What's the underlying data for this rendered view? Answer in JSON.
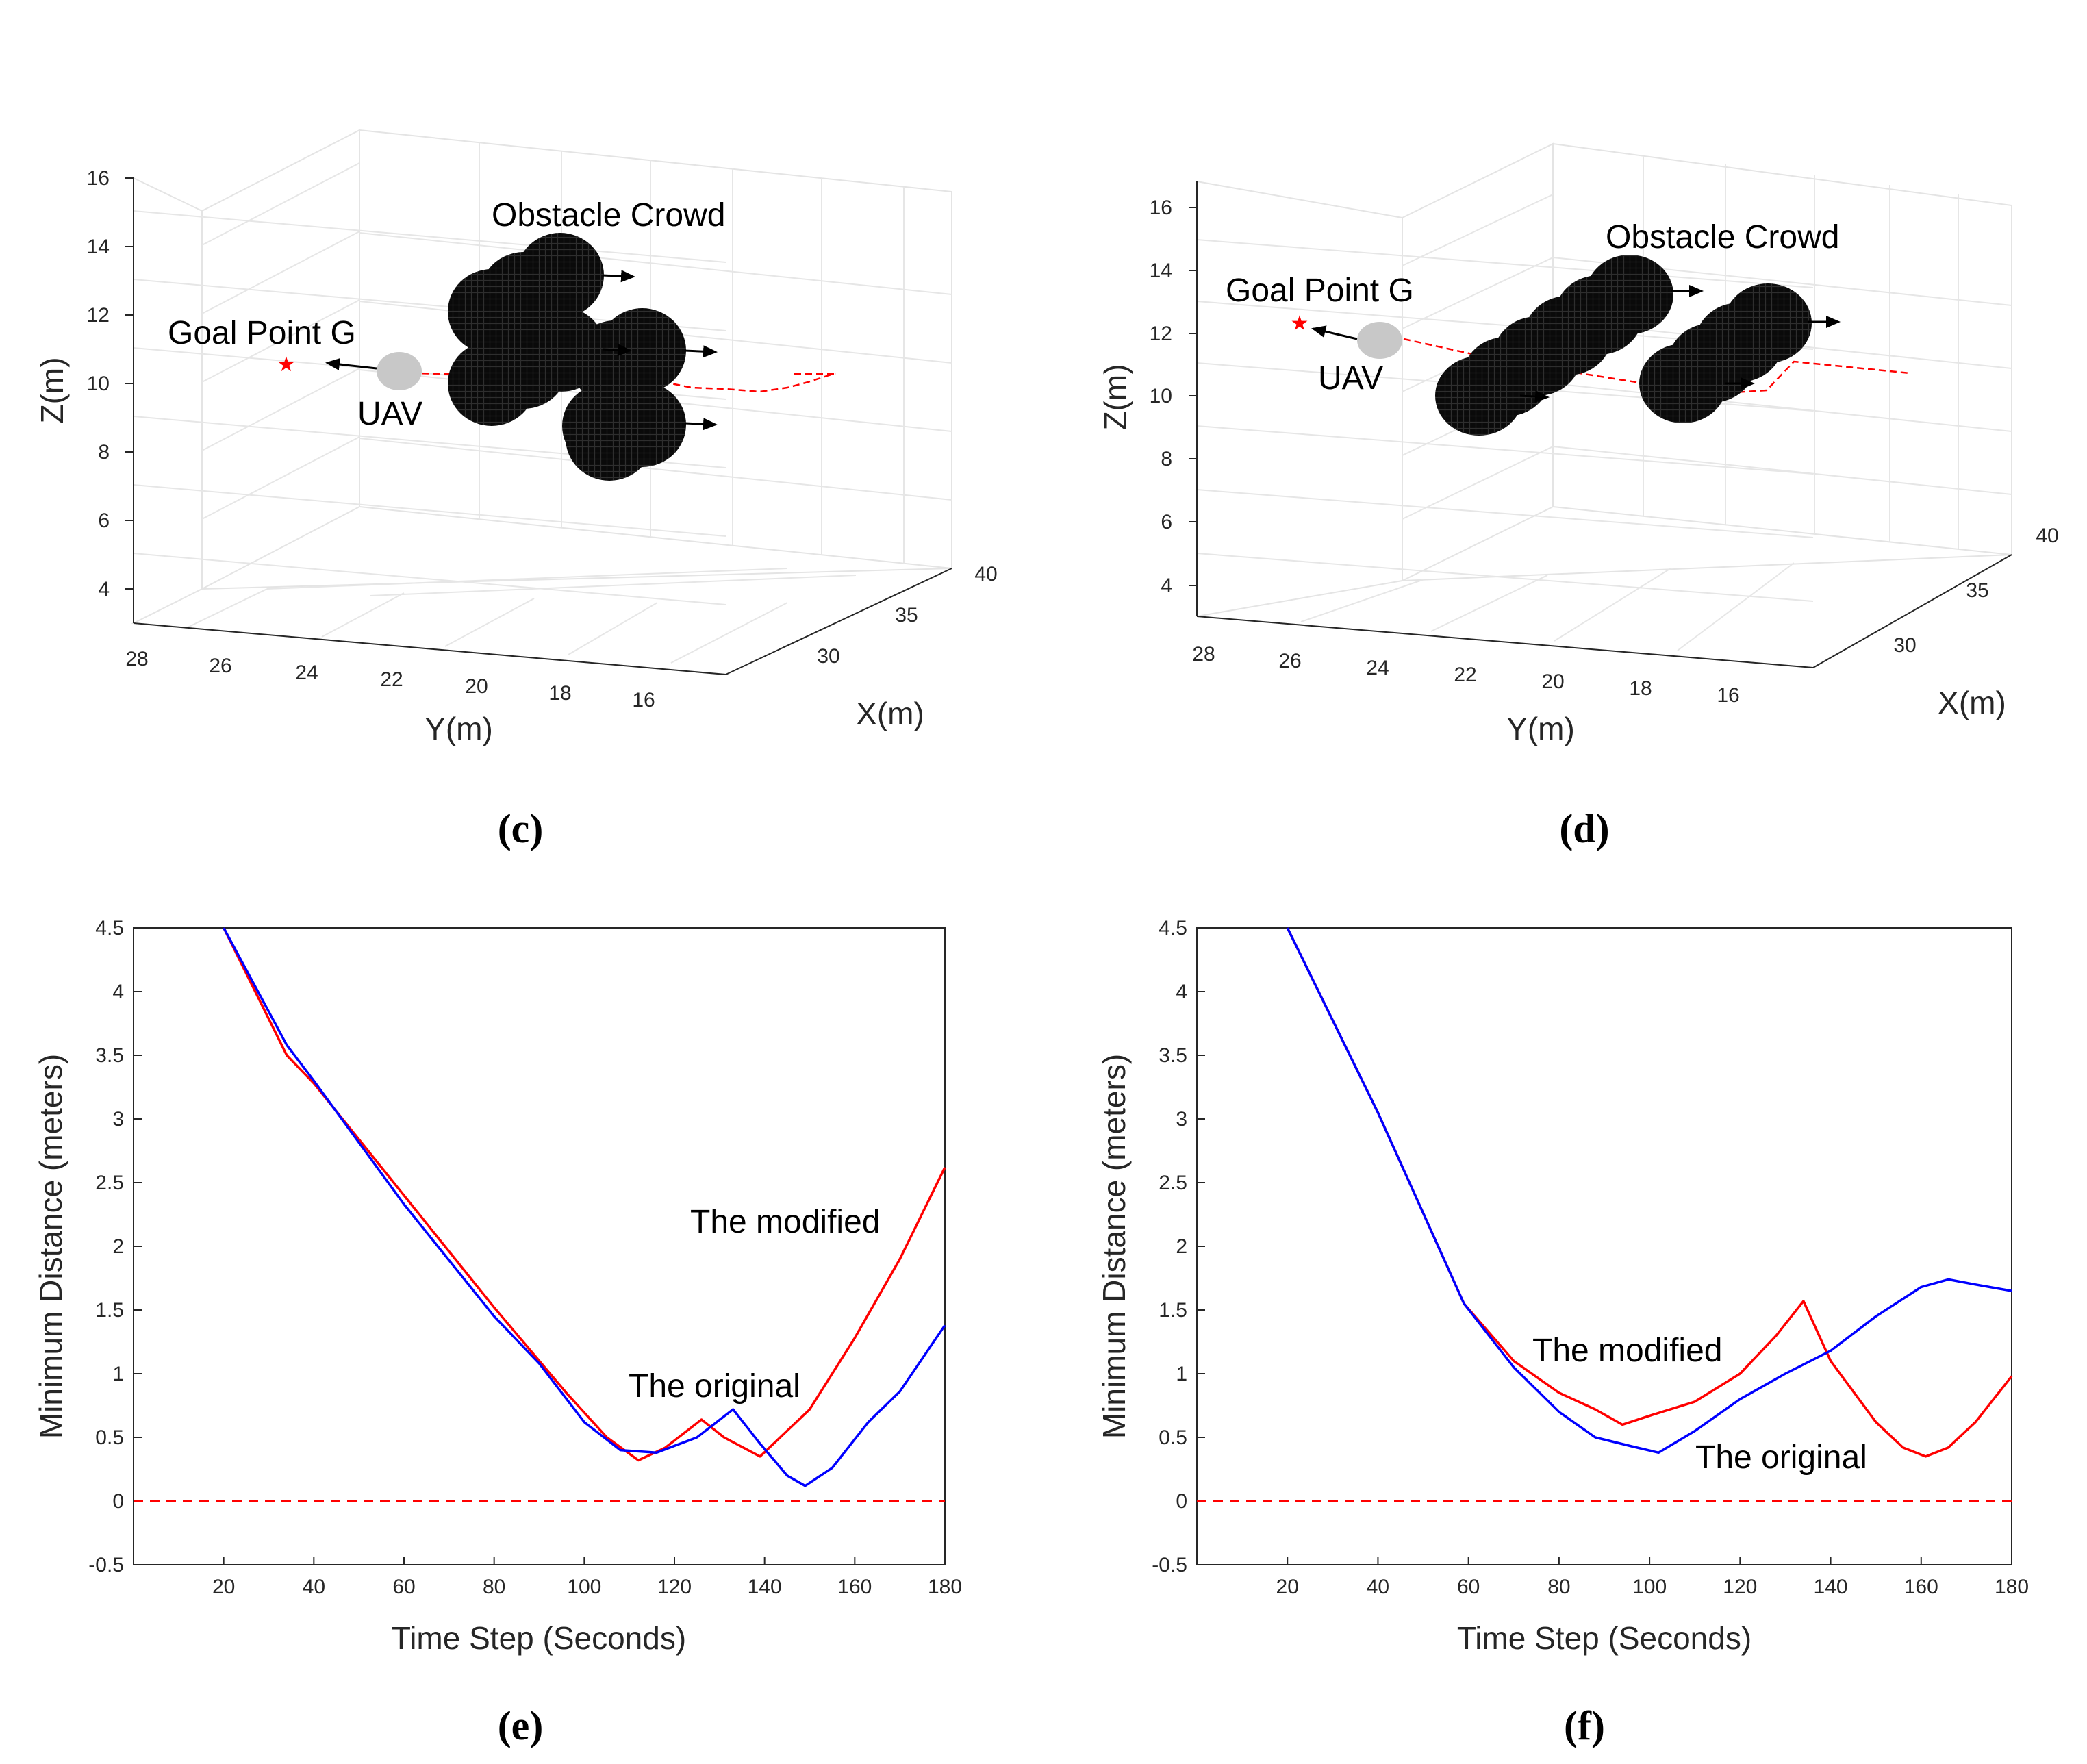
{
  "colors": {
    "modified": "#ff0000",
    "original": "#0000ff",
    "zero": "#ff0000",
    "obstacle": "#111111",
    "uav": "#c8c8c8"
  },
  "panels": {
    "c": {
      "label": "(c)",
      "annot_goal": "Goal Point G",
      "annot_uav": "UAV",
      "annot_crowd": "Obstacle Crowd"
    },
    "d": {
      "label": "(d)",
      "annot_goal": "Goal Point G",
      "annot_uav": "UAV",
      "annot_crowd": "Obstacle Crowd"
    },
    "e": {
      "label": "(e)",
      "annot_modified": "The modified",
      "annot_original": "The original"
    },
    "f": {
      "label": "(f)",
      "annot_modified": "The modified",
      "annot_original": "The original"
    }
  },
  "chart_data": [
    {
      "id": "c",
      "type": "scatter3d",
      "xlabel": "X(m)",
      "ylabel": "Y(m)",
      "zlabel": "Z(m)",
      "x_ticks": [
        "30",
        "35",
        "40"
      ],
      "y_ticks": [
        "28",
        "26",
        "24",
        "22",
        "20",
        "18",
        "16"
      ],
      "z_ticks": [
        "4",
        "6",
        "8",
        "10",
        "12",
        "14",
        "16"
      ]
    },
    {
      "id": "d",
      "type": "scatter3d",
      "xlabel": "X(m)",
      "ylabel": "Y(m)",
      "zlabel": "Z(m)",
      "x_ticks": [
        "30",
        "35",
        "40"
      ],
      "y_ticks": [
        "28",
        "26",
        "24",
        "22",
        "20",
        "18",
        "16"
      ],
      "z_ticks": [
        "4",
        "6",
        "8",
        "10",
        "12",
        "14",
        "16"
      ]
    },
    {
      "id": "e",
      "type": "line",
      "xlabel": "Time Step (Seconds)",
      "ylabel": "Minimum Distance (meters)",
      "xlim": [
        0,
        180
      ],
      "ylim": [
        -0.5,
        4.5
      ],
      "x_ticks": [
        "20",
        "40",
        "60",
        "80",
        "100",
        "120",
        "140",
        "160",
        "180"
      ],
      "y_ticks": [
        "-0.5",
        "0",
        "0.5",
        "1",
        "1.5",
        "2",
        "2.5",
        "3",
        "3.5",
        "4",
        "4.5"
      ],
      "zero_line": 0,
      "series": [
        {
          "name": "The modified",
          "points": [
            [
              20,
              4.5
            ],
            [
              34,
              3.5
            ],
            [
              40,
              3.28
            ],
            [
              60,
              2.4
            ],
            [
              80,
              1.52
            ],
            [
              96,
              0.85
            ],
            [
              105,
              0.5
            ],
            [
              112,
              0.32
            ],
            [
              118,
              0.42
            ],
            [
              126,
              0.64
            ],
            [
              131,
              0.5
            ],
            [
              139,
              0.35
            ],
            [
              150,
              0.72
            ],
            [
              160,
              1.28
            ],
            [
              170,
              1.9
            ],
            [
              180,
              2.62
            ]
          ]
        },
        {
          "name": "The original",
          "points": [
            [
              20,
              4.5
            ],
            [
              34,
              3.58
            ],
            [
              40,
              3.3
            ],
            [
              60,
              2.33
            ],
            [
              80,
              1.45
            ],
            [
              90,
              1.08
            ],
            [
              100,
              0.62
            ],
            [
              108,
              0.4
            ],
            [
              116,
              0.38
            ],
            [
              125,
              0.5
            ],
            [
              133,
              0.72
            ],
            [
              139,
              0.45
            ],
            [
              145,
              0.2
            ],
            [
              149,
              0.12
            ],
            [
              155,
              0.26
            ],
            [
              163,
              0.62
            ],
            [
              170,
              0.86
            ],
            [
              180,
              1.38
            ]
          ]
        }
      ]
    },
    {
      "id": "f",
      "type": "line",
      "xlabel": "Time Step (Seconds)",
      "ylabel": "Minimum Distance (meters)",
      "xlim": [
        0,
        180
      ],
      "ylim": [
        -0.5,
        4.5
      ],
      "x_ticks": [
        "20",
        "40",
        "60",
        "80",
        "100",
        "120",
        "140",
        "160",
        "180"
      ],
      "y_ticks": [
        "-0.5",
        "0",
        "0.5",
        "1",
        "1.5",
        "2",
        "2.5",
        "3",
        "3.5",
        "4",
        "4.5"
      ],
      "zero_line": 0,
      "series": [
        {
          "name": "The modified",
          "points": [
            [
              20,
              4.6
            ],
            [
              40,
              3.05
            ],
            [
              59,
              1.55
            ],
            [
              70,
              1.1
            ],
            [
              80,
              0.85
            ],
            [
              88,
              0.72
            ],
            [
              94,
              0.6
            ],
            [
              100,
              0.67
            ],
            [
              110,
              0.78
            ],
            [
              120,
              1.0
            ],
            [
              128,
              1.3
            ],
            [
              134,
              1.57
            ],
            [
              140,
              1.1
            ],
            [
              150,
              0.62
            ],
            [
              156,
              0.42
            ],
            [
              161,
              0.35
            ],
            [
              166,
              0.42
            ],
            [
              172,
              0.62
            ],
            [
              180,
              0.98
            ]
          ]
        },
        {
          "name": "The original",
          "points": [
            [
              20,
              4.6
            ],
            [
              40,
              3.05
            ],
            [
              59,
              1.55
            ],
            [
              70,
              1.05
            ],
            [
              80,
              0.7
            ],
            [
              88,
              0.5
            ],
            [
              96,
              0.43
            ],
            [
              102,
              0.38
            ],
            [
              110,
              0.55
            ],
            [
              120,
              0.8
            ],
            [
              130,
              1.0
            ],
            [
              140,
              1.18
            ],
            [
              150,
              1.45
            ],
            [
              160,
              1.68
            ],
            [
              166,
              1.74
            ],
            [
              172,
              1.7
            ],
            [
              180,
              1.65
            ]
          ]
        }
      ]
    }
  ]
}
